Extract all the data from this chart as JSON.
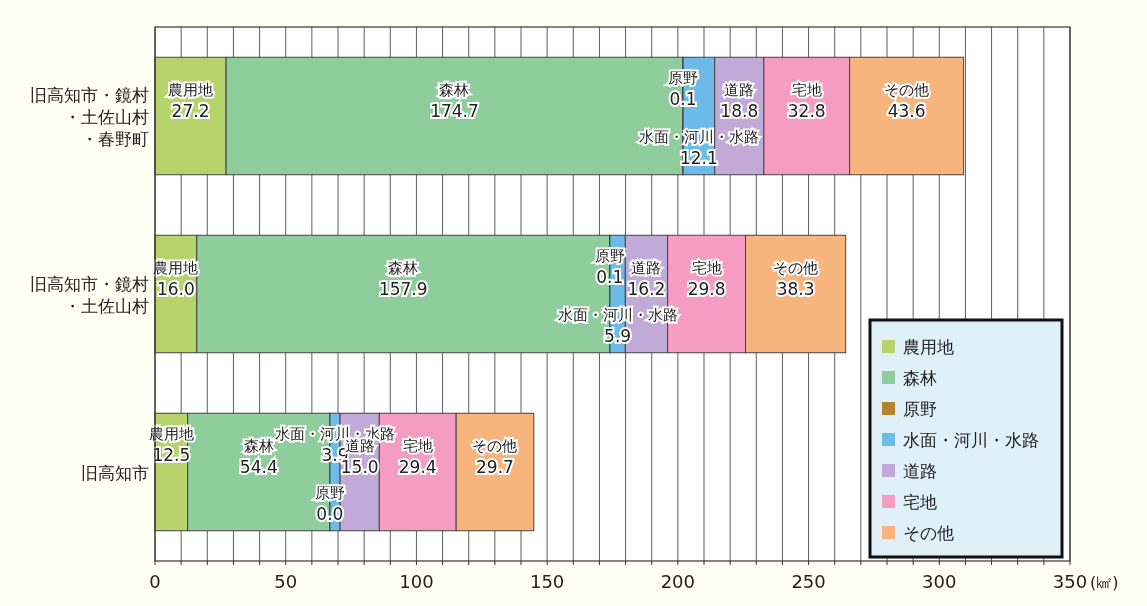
{
  "chart_data": {
    "type": "bar",
    "orientation": "horizontal",
    "stacked": true,
    "categories": [
      "旧高知市・鏡村・土佐山村・春野町",
      "旧高知市・鏡村・土佐山村",
      "旧高知市"
    ],
    "series": [
      {
        "name": "農用地",
        "color": "#b7d36c",
        "values": [
          27.2,
          16.0,
          12.5
        ],
        "value_labels": [
          "27.2",
          "16.0",
          "12.5"
        ]
      },
      {
        "name": "森林",
        "color": "#8fcd9c",
        "values": [
          174.7,
          157.9,
          54.4
        ],
        "value_labels": [
          "174.7",
          "157.9",
          "54.4"
        ]
      },
      {
        "name": "原野",
        "color": "#b3832d",
        "values": [
          0.1,
          0.1,
          0.0
        ],
        "value_labels": [
          "0.1",
          "0.1",
          "0.0"
        ]
      },
      {
        "name": "水面・河川・水路",
        "color": "#6cbbe8",
        "values": [
          12.1,
          5.9,
          3.9
        ],
        "value_labels": [
          "12.1",
          "5.9",
          "3.9"
        ]
      },
      {
        "name": "道路",
        "color": "#c2aad8",
        "values": [
          18.8,
          16.2,
          15.0
        ],
        "value_labels": [
          "18.8",
          "16.2",
          "15.0"
        ]
      },
      {
        "name": "宅地",
        "color": "#f59cc3",
        "values": [
          32.8,
          29.8,
          29.4
        ],
        "value_labels": [
          "32.8",
          "29.8",
          "29.4"
        ]
      },
      {
        "name": "その他",
        "color": "#f7b47c",
        "values": [
          43.6,
          38.3,
          29.7
        ],
        "value_labels": [
          "43.6",
          "38.3",
          "29.7"
        ]
      }
    ],
    "xlim": [
      0,
      350
    ],
    "xticks": [
      0,
      {
        "value": 10,
        "label": null
      },
      {
        "value": 20,
        "label": null
      },
      {
        "value": 30,
        "label": null
      },
      {
        "value": 40,
        "label": null
      },
      50,
      {
        "value": 60,
        "label": null
      },
      {
        "value": 70,
        "label": null
      },
      {
        "value": 80,
        "label": null
      },
      {
        "value": 90,
        "label": null
      },
      100,
      {
        "value": 110,
        "label": null
      },
      {
        "value": 120,
        "label": null
      },
      {
        "value": 130,
        "label": null
      },
      {
        "value": 140,
        "label": null
      },
      150,
      {
        "value": 160,
        "label": null
      },
      {
        "value": 170,
        "label": null
      },
      {
        "value": 180,
        "label": null
      },
      {
        "value": 190,
        "label": null
      },
      200,
      {
        "value": 210,
        "label": null
      },
      {
        "value": 220,
        "label": null
      },
      {
        "value": 230,
        "label": null
      },
      {
        "value": 240,
        "label": null
      },
      250,
      {
        "value": 260,
        "label": null
      },
      {
        "value": 270,
        "label": null
      },
      {
        "value": 280,
        "label": null
      },
      {
        "value": 290,
        "label": null
      },
      300,
      {
        "value": 310,
        "label": null
      },
      {
        "value": 320,
        "label": null
      },
      {
        "value": 330,
        "label": null
      },
      {
        "value": 340,
        "label": null
      },
      350
    ],
    "xlabel": "(㎢)",
    "grid": "x",
    "legend": "bottom right"
  }
}
